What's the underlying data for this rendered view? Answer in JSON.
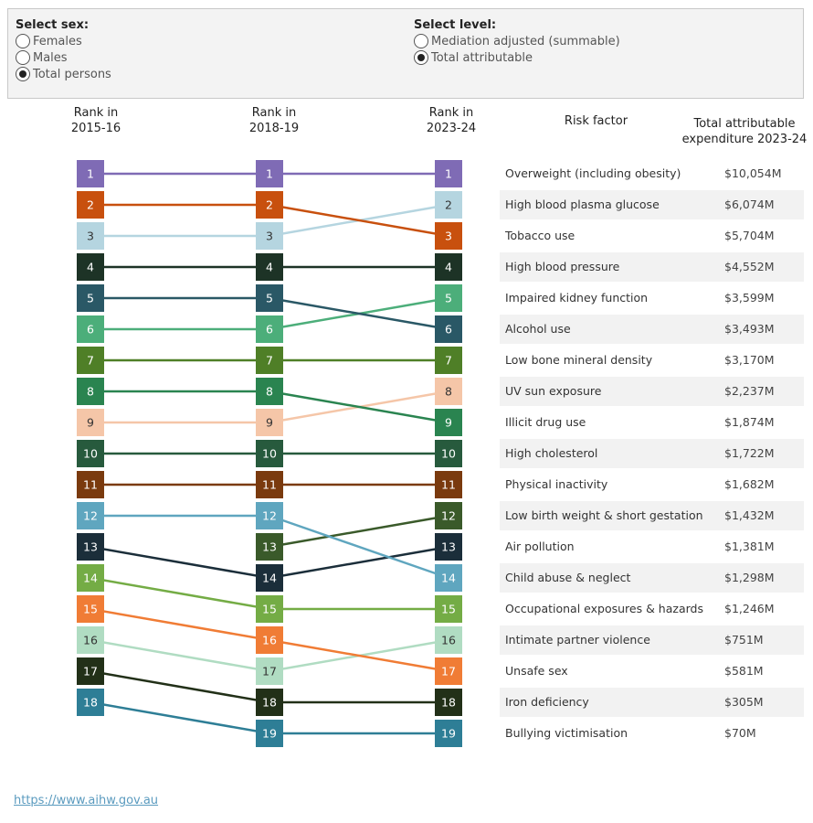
{
  "filters": {
    "sex": {
      "title": "Select sex:",
      "options": [
        "Females",
        "Males",
        "Total persons"
      ],
      "selected": "Total persons"
    },
    "level": {
      "title": "Select level:",
      "options": [
        "Mediation adjusted (summable)",
        "Total attributable"
      ],
      "selected": "Total attributable"
    }
  },
  "headers": {
    "col1": [
      "Rank in",
      "2015-16"
    ],
    "col2": [
      "Rank in",
      "2018-19"
    ],
    "col3": [
      "Rank in",
      "2023-24"
    ],
    "risk": "Risk factor",
    "spend": [
      "Total attributable",
      "expenditure 2023-24"
    ]
  },
  "chart_data": {
    "type": "table",
    "columns": [
      "Rank in 2015-16",
      "Rank in 2018-19",
      "Rank in 2023-24",
      "Risk factor",
      "Total attributable expenditure 2023-24"
    ],
    "rows": [
      {
        "risk": "Overweight (including obesity)",
        "r2015": 1,
        "r2018": 1,
        "r2023": 1,
        "spend": "$10,054M",
        "color": "#7f6bb5",
        "light": false
      },
      {
        "risk": "High blood plasma glucose",
        "r2015": 3,
        "r2018": 3,
        "r2023": 2,
        "spend": "$6,074M",
        "color": "#b5d5e0",
        "light": true
      },
      {
        "risk": "Tobacco use",
        "r2015": 2,
        "r2018": 2,
        "r2023": 3,
        "spend": "$5,704M",
        "color": "#c8500e",
        "light": false
      },
      {
        "risk": "High blood pressure",
        "r2015": 4,
        "r2018": 4,
        "r2023": 4,
        "spend": "$4,552M",
        "color": "#1d3326",
        "light": false
      },
      {
        "risk": "Impaired kidney function",
        "r2015": 6,
        "r2018": 6,
        "r2023": 5,
        "spend": "$3,599M",
        "color": "#4cae7a",
        "light": false
      },
      {
        "risk": "Alcohol use",
        "r2015": 5,
        "r2018": 5,
        "r2023": 6,
        "spend": "$3,493M",
        "color": "#2a5866",
        "light": false
      },
      {
        "risk": "Low bone mineral density",
        "r2015": 7,
        "r2018": 7,
        "r2023": 7,
        "spend": "$3,170M",
        "color": "#4f7f27",
        "light": false
      },
      {
        "risk": "UV sun exposure",
        "r2015": 9,
        "r2018": 9,
        "r2023": 8,
        "spend": "$2,237M",
        "color": "#f5c6a8",
        "light": true
      },
      {
        "risk": "Illicit drug use",
        "r2015": 8,
        "r2018": 8,
        "r2023": 9,
        "spend": "$1,874M",
        "color": "#2a8450",
        "light": false
      },
      {
        "risk": "High cholesterol",
        "r2015": 10,
        "r2018": 10,
        "r2023": 10,
        "spend": "$1,722M",
        "color": "#275a3d",
        "light": false
      },
      {
        "risk": "Physical inactivity",
        "r2015": 11,
        "r2018": 11,
        "r2023": 11,
        "spend": "$1,682M",
        "color": "#7a3a0e",
        "light": false
      },
      {
        "risk": "Low birth weight & short gestation",
        "r2015": null,
        "r2018": 13,
        "r2023": 12,
        "spend": "$1,432M",
        "color": "#3a5a2a",
        "light": false
      },
      {
        "risk": "Air pollution",
        "r2015": 13,
        "r2018": 14,
        "r2023": 13,
        "spend": "$1,381M",
        "color": "#1b2e3a",
        "light": false
      },
      {
        "risk": "Child abuse & neglect",
        "r2015": 12,
        "r2018": 12,
        "r2023": 14,
        "spend": "$1,298M",
        "color": "#5fa6bf",
        "light": false
      },
      {
        "risk": "Occupational exposures & hazards",
        "r2015": 14,
        "r2018": 15,
        "r2023": 15,
        "spend": "$1,246M",
        "color": "#74ac45",
        "light": false
      },
      {
        "risk": "Intimate partner violence",
        "r2015": 16,
        "r2018": 17,
        "r2023": 16,
        "spend": "$751M",
        "color": "#b0dcc2",
        "light": true
      },
      {
        "risk": "Unsafe sex",
        "r2015": 15,
        "r2018": 16,
        "r2023": 17,
        "spend": "$581M",
        "color": "#f07c35",
        "light": false
      },
      {
        "risk": "Iron deficiency",
        "r2015": 17,
        "r2018": 18,
        "r2023": 18,
        "spend": "$305M",
        "color": "#223018",
        "light": false
      },
      {
        "risk": "Bullying victimisation",
        "r2015": 18,
        "r2018": 19,
        "r2023": 19,
        "spend": "$70M",
        "color": "#2e7e96",
        "light": false
      }
    ]
  },
  "footer": {
    "link": "https://www.aihw.gov.au"
  }
}
